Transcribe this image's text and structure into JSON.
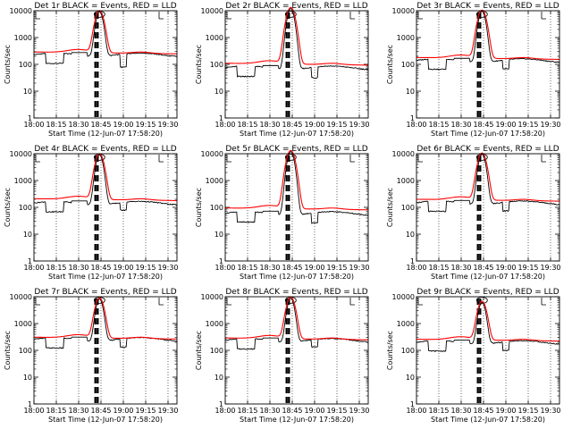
{
  "chart_data": {
    "type": "line",
    "layout": "3x3 grid",
    "ylabel": "Counts/sec",
    "xlabel": "Start Time (12-Jun-07 17:58:20)",
    "ylim": [
      1,
      10000
    ],
    "yscale": "log",
    "y_ticks": [
      1,
      10,
      100,
      1000,
      10000
    ],
    "x_ticks": [
      "18:00",
      "18:15",
      "18:30",
      "18:45",
      "19:00",
      "19:15",
      "19:30"
    ],
    "x_tick_minutes": [
      0,
      15,
      30,
      45,
      60,
      75,
      90
    ],
    "xlim_minutes": [
      0,
      96
    ],
    "grid": true,
    "series_colors": {
      "events": "#000000",
      "lld": "#ff0000"
    },
    "panels": [
      {
        "title": "Det 1r BLACK = Events, RED = LLD",
        "base_events": 230,
        "base_lld": 290,
        "peak": 9000,
        "dip": 75
      },
      {
        "title": "Det 2r BLACK = Events, RED = LLD",
        "base_events": 75,
        "base_lld": 110,
        "peak": 12000,
        "dip": 30
      },
      {
        "title": "Det 3r BLACK = Events, RED = LLD",
        "base_events": 140,
        "base_lld": 180,
        "peak": 9500,
        "dip": 65
      },
      {
        "title": "Det 4r BLACK = Events, RED = LLD",
        "base_events": 145,
        "base_lld": 210,
        "peak": 9000,
        "dip": 75
      },
      {
        "title": "Det 5r BLACK = Events, RED = LLD",
        "base_events": 60,
        "base_lld": 95,
        "peak": 12000,
        "dip": 25
      },
      {
        "title": "Det 6r BLACK = Events, RED = LLD",
        "base_events": 150,
        "base_lld": 200,
        "peak": 9500,
        "dip": 70
      },
      {
        "title": "Det 7r BLACK = Events, RED = LLD",
        "base_events": 260,
        "base_lld": 310,
        "peak": 8000,
        "dip": 125
      },
      {
        "title": "Det 8r BLACK = Events, RED = LLD",
        "base_events": 240,
        "base_lld": 290,
        "peak": 8500,
        "dip": 130
      },
      {
        "title": "Det 9r BLACK = Events, RED = LLD",
        "base_events": 200,
        "base_lld": 260,
        "peak": 6000,
        "dip": 95
      }
    ]
  }
}
